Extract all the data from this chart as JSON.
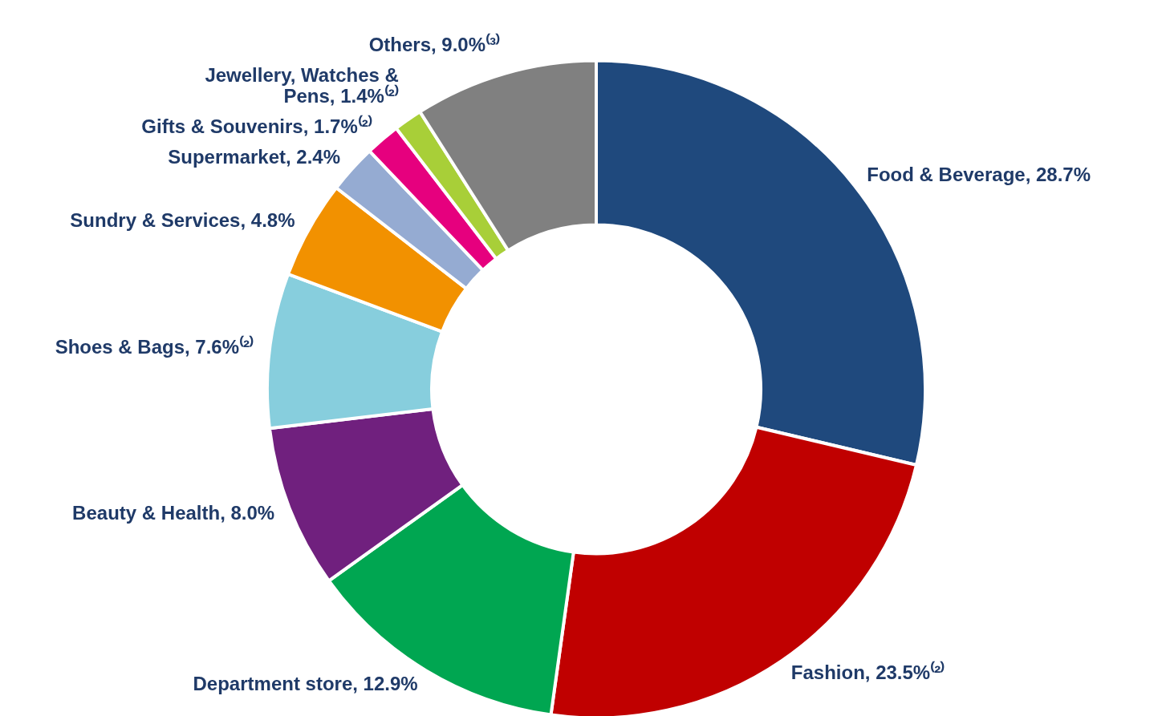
{
  "chart_data": {
    "type": "donut",
    "categories": [
      "Food & Beverage",
      "Fashion",
      "Department store",
      "Beauty & Health",
      "Shoes & Bags",
      "Sundry & Services",
      "Supermarket",
      "Gifts & Souvenirs",
      "Jewellery, Watches & Pens",
      "Others"
    ],
    "values": [
      28.7,
      23.5,
      12.9,
      8.0,
      7.6,
      4.8,
      2.4,
      1.7,
      1.4,
      9.0
    ],
    "colors": [
      "#1f497d",
      "#c00000",
      "#00a651",
      "#70207e",
      "#87cedd",
      "#f29100",
      "#95abd2",
      "#e6007e",
      "#a8cf38",
      "#808080"
    ],
    "value_labels": [
      "28.7%",
      "23.5%⁽²⁾",
      "12.9%",
      "8.0%",
      "7.6%⁽²⁾",
      "4.8%",
      "2.4%",
      "1.7%⁽²⁾",
      "1.4%⁽²⁾",
      "9.0%⁽³⁾"
    ]
  }
}
